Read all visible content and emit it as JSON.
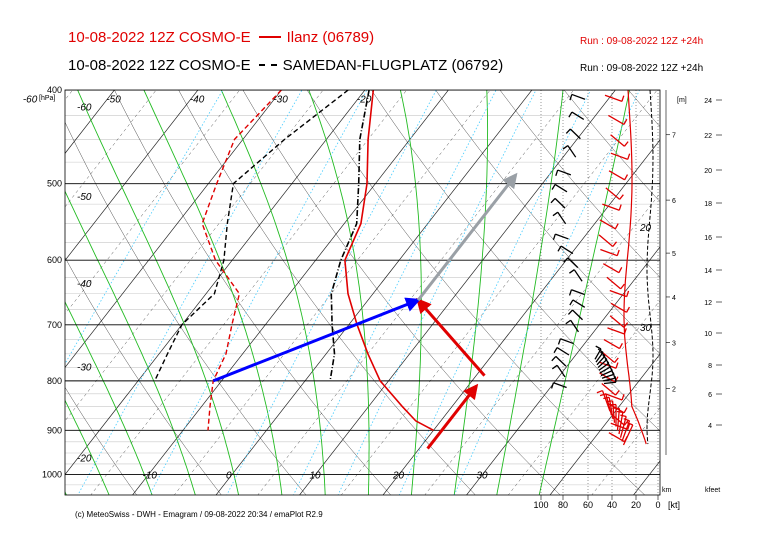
{
  "header": {
    "row1_left": "10-08-2022 12Z COSMO-E",
    "row1_station": "Ilanz (06789)",
    "row1_run": "Run : 09-08-2022 12Z +24h",
    "row2_left": "10-08-2022 12Z COSMO-E",
    "row2_station": "SAMEDAN-FLUGPLATZ (06792)",
    "row2_run": "Run : 09-08-2022 12Z +24h"
  },
  "footer": "(c) MeteoSwiss - DWH - Emagram / 09-08-2022  20:34 / emaPlot R2.9",
  "colors": {
    "ilanz": "#e00000",
    "samedan": "#000000",
    "dry_adiabat": "#000000",
    "moist_adiabat": "#22bb22",
    "mixing_ratio": "#44ccff",
    "hodo_blue": "#0000ff",
    "hodo_grey": "#9aa0a6"
  },
  "chart_data": {
    "type": "emagram",
    "y_axis": {
      "unit": "[hPa]",
      "ticks": [
        "400",
        "500",
        "600",
        "700",
        "800",
        "900",
        "1000"
      ]
    },
    "temperature_labels": [
      "-60",
      "-50",
      "-40",
      "-30",
      "-20",
      "-10",
      "0",
      "10",
      "20",
      "30"
    ],
    "temperature_labels_left": [
      "-60",
      "-50",
      "-40",
      "-30",
      "-20"
    ],
    "height_m_label": "[m]",
    "height_m_ticks": [
      "7",
      "6",
      "5",
      "4",
      "3",
      "2"
    ],
    "height_kfeet_ticks": [
      "24",
      "22",
      "20",
      "18",
      "16",
      "14",
      "12",
      "10",
      "8",
      "6",
      "4"
    ],
    "kfeet_label": "kfeet",
    "km_label": "km",
    "wind_scale": {
      "ticks": [
        "100",
        "80",
        "60",
        "40",
        "20",
        "0"
      ],
      "unit": "[kt]"
    },
    "inline_labels": [
      "20",
      "30"
    ],
    "series": [
      {
        "name": "Ilanz (06789)",
        "temperature": [
          [
            400,
            -19
          ],
          [
            450,
            -15
          ],
          [
            500,
            -11
          ],
          [
            550,
            -8
          ],
          [
            600,
            -6.5
          ],
          [
            650,
            -3
          ],
          [
            700,
            1
          ],
          [
            750,
            5
          ],
          [
            800,
            9
          ],
          [
            850,
            14
          ],
          [
            880,
            17
          ],
          [
            900,
            20
          ]
        ],
        "dewpoint": [
          [
            400,
            -30
          ],
          [
            450,
            -31
          ],
          [
            500,
            -29
          ],
          [
            550,
            -27
          ],
          [
            600,
            -22
          ],
          [
            650,
            -16
          ],
          [
            700,
            -14
          ],
          [
            750,
            -12
          ],
          [
            800,
            -11
          ],
          [
            850,
            -9
          ],
          [
            900,
            -7
          ]
        ]
      },
      {
        "name": "SAMEDAN-FLUGPLATZ (06792)",
        "temperature": [
          [
            400,
            -19.5
          ],
          [
            450,
            -16
          ],
          [
            500,
            -12
          ],
          [
            550,
            -8.5
          ],
          [
            600,
            -7
          ],
          [
            650,
            -5
          ],
          [
            700,
            -2
          ],
          [
            750,
            1
          ],
          [
            800,
            3
          ]
        ],
        "dewpoint": [
          [
            400,
            -22
          ],
          [
            450,
            -25
          ],
          [
            500,
            -27
          ],
          [
            550,
            -24
          ],
          [
            600,
            -21
          ],
          [
            650,
            -19
          ],
          [
            700,
            -20
          ],
          [
            750,
            -19
          ],
          [
            800,
            -18
          ]
        ]
      }
    ],
    "hodograph_arrows": [
      {
        "color": "red",
        "from": [
          21,
          940
        ],
        "to": [
          21,
          810
        ]
      },
      {
        "color": "red",
        "from": [
          21,
          790
        ],
        "to": [
          6,
          660
        ]
      },
      {
        "color": "blue",
        "from": [
          -11,
          800
        ],
        "to": [
          6,
          660
        ]
      },
      {
        "color": "grey",
        "from": [
          6,
          660
        ],
        "to": [
          6,
          490
        ]
      }
    ]
  }
}
